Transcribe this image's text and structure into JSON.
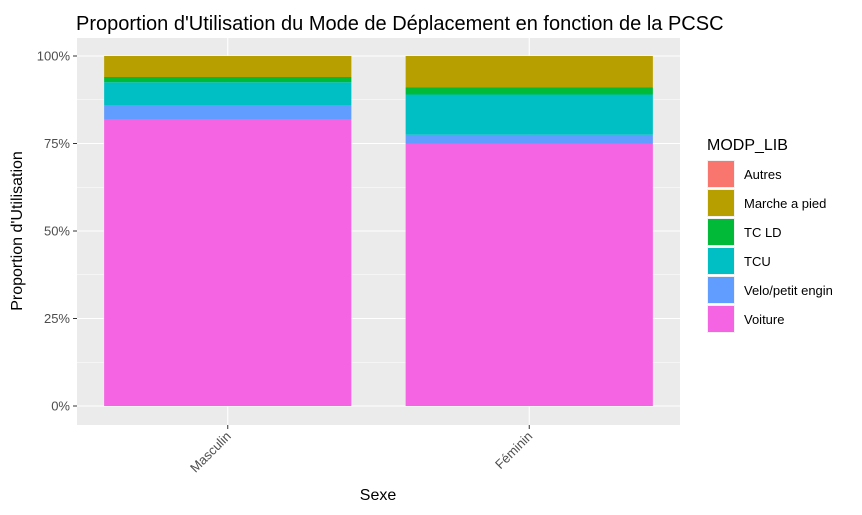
{
  "chart_data": {
    "type": "bar",
    "stacked": true,
    "title": "Proportion d'Utilisation du Mode de Déplacement en fonction de la PCSC",
    "xlabel": "Sexe",
    "ylabel": "Proportion d'Utilisation",
    "categories": [
      "Masculin",
      "Féminin"
    ],
    "y_ticks": [
      "0%",
      "25%",
      "50%",
      "75%",
      "100%"
    ],
    "ylim": [
      0,
      1
    ],
    "grid": true,
    "legend": {
      "title": "MODP_LIB",
      "position": "right"
    },
    "series": [
      {
        "name": "Autres",
        "color": "#F8766D",
        "values": [
          0.0,
          0.0
        ]
      },
      {
        "name": "Marche a pied",
        "color": "#B79F00",
        "values": [
          0.06,
          0.09
        ]
      },
      {
        "name": "TC LD",
        "color": "#00BA38",
        "values": [
          0.015,
          0.02
        ]
      },
      {
        "name": "TCU",
        "color": "#00BFC4",
        "values": [
          0.065,
          0.115
        ]
      },
      {
        "name": "Velo/petit engin",
        "color": "#619CFF",
        "values": [
          0.04,
          0.025
        ]
      },
      {
        "name": "Voiture",
        "color": "#F564E3",
        "values": [
          0.82,
          0.75
        ]
      }
    ]
  }
}
